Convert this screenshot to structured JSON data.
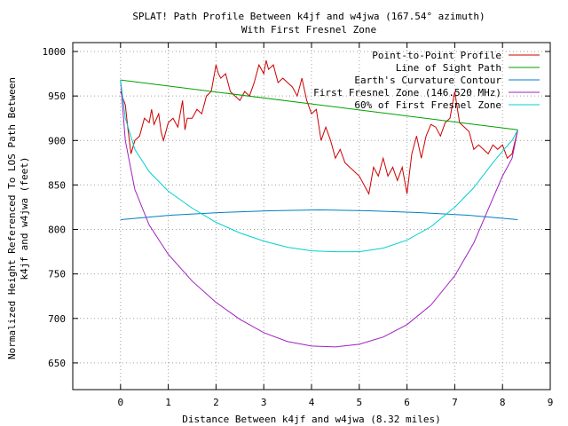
{
  "chart_data": {
    "type": "line",
    "title": "SPLAT! Path Profile Between k4jf and w4jwa (167.54° azimuth)",
    "subtitle": "With First Fresnel Zone",
    "xlabel": "Distance Between k4jf and w4jwa (8.32 miles)",
    "ylabel_line1": "Normalized Height Referenced To LOS Path Between",
    "ylabel_line2": "k4jf and w4jwa (feet)",
    "xlim": [
      -1,
      9
    ],
    "ylim": [
      620,
      1010
    ],
    "x_ticks": [
      0,
      1,
      2,
      3,
      4,
      5,
      6,
      7,
      8,
      9
    ],
    "y_ticks": [
      650,
      700,
      750,
      800,
      850,
      900,
      950,
      1000
    ],
    "grid": true,
    "legend_position": "top-right",
    "series": [
      {
        "name": "Point-to-Point Profile",
        "color": "#cc0000",
        "x": [
          0.0,
          0.1,
          0.15,
          0.22,
          0.3,
          0.4,
          0.5,
          0.6,
          0.65,
          0.7,
          0.8,
          0.85,
          0.9,
          1.0,
          1.1,
          1.2,
          1.3,
          1.35,
          1.4,
          1.5,
          1.6,
          1.7,
          1.8,
          1.9,
          2.0,
          2.05,
          2.1,
          2.2,
          2.3,
          2.4,
          2.5,
          2.6,
          2.7,
          2.8,
          2.9,
          3.0,
          3.05,
          3.1,
          3.2,
          3.3,
          3.4,
          3.5,
          3.6,
          3.7,
          3.8,
          3.9,
          4.0,
          4.1,
          4.2,
          4.3,
          4.4,
          4.5,
          4.6,
          4.7,
          4.8,
          4.9,
          5.0,
          5.1,
          5.2,
          5.3,
          5.4,
          5.5,
          5.6,
          5.7,
          5.8,
          5.9,
          6.0,
          6.1,
          6.2,
          6.3,
          6.4,
          6.5,
          6.6,
          6.7,
          6.8,
          6.9,
          7.0,
          7.1,
          7.2,
          7.3,
          7.4,
          7.5,
          7.6,
          7.7,
          7.8,
          7.9,
          8.0,
          8.1,
          8.2,
          8.32
        ],
        "y": [
          955,
          940,
          915,
          885,
          900,
          905,
          925,
          920,
          935,
          918,
          930,
          910,
          900,
          920,
          925,
          915,
          945,
          912,
          925,
          925,
          935,
          930,
          950,
          955,
          985,
          975,
          970,
          975,
          955,
          950,
          945,
          955,
          950,
          965,
          985,
          975,
          990,
          980,
          985,
          965,
          970,
          965,
          960,
          950,
          970,
          945,
          930,
          935,
          900,
          915,
          900,
          880,
          890,
          875,
          870,
          865,
          860,
          850,
          840,
          870,
          860,
          880,
          860,
          870,
          855,
          870,
          840,
          885,
          905,
          880,
          905,
          918,
          915,
          905,
          920,
          925,
          955,
          920,
          915,
          910,
          890,
          895,
          890,
          885,
          895,
          890,
          895,
          880,
          885,
          912
        ]
      },
      {
        "name": "Line of Sight Path",
        "color": "#00a000",
        "x": [
          0,
          8.32
        ],
        "y": [
          968,
          912
        ]
      },
      {
        "name": "Earth's Curvature Contour",
        "color": "#0080c0",
        "x": [
          0,
          1.04,
          2.08,
          3.12,
          4.16,
          5.2,
          6.24,
          7.28,
          8.32
        ],
        "y": [
          811,
          816,
          819,
          821,
          822,
          821,
          819,
          816,
          811
        ]
      },
      {
        "name": "First Fresnel Zone (146.520 MHz)",
        "color": "#a020c0",
        "x": [
          0,
          0.1,
          0.3,
          0.6,
          1.0,
          1.5,
          2.0,
          2.5,
          3.0,
          3.5,
          4.0,
          4.5,
          5.0,
          5.5,
          6.0,
          6.5,
          7.0,
          7.4,
          7.8,
          8.0,
          8.2,
          8.32
        ],
        "y": [
          968,
          900,
          845,
          805,
          772,
          742,
          718,
          699,
          684,
          674,
          669,
          668,
          671,
          679,
          693,
          715,
          748,
          785,
          835,
          860,
          880,
          912
        ]
      },
      {
        "name": "60% of First Fresnel Zone",
        "color": "#00d0d0",
        "x": [
          0,
          0.1,
          0.3,
          0.6,
          1.0,
          1.5,
          2.0,
          2.5,
          3.0,
          3.5,
          4.0,
          4.5,
          5.0,
          5.5,
          6.0,
          6.5,
          7.0,
          7.4,
          7.8,
          8.0,
          8.2,
          8.32
        ],
        "y": [
          968,
          925,
          890,
          865,
          843,
          824,
          808,
          796,
          787,
          780,
          776,
          775,
          775,
          779,
          788,
          803,
          825,
          847,
          875,
          888,
          900,
          912
        ]
      }
    ]
  }
}
